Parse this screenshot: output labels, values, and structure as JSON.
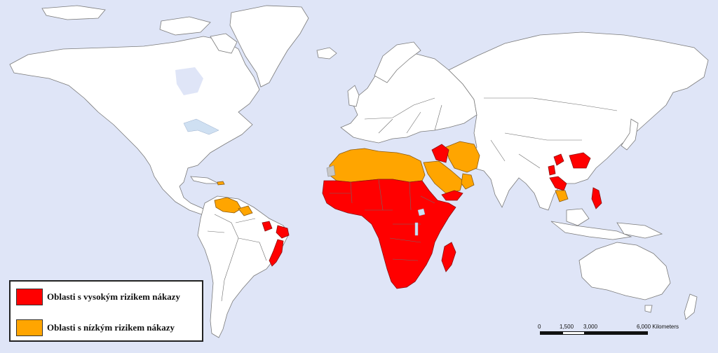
{
  "legend": {
    "items": [
      {
        "label": "Oblasti s vysokým rizikem nákazy",
        "color": "#ff0000"
      },
      {
        "label": "Oblasti s nízkým rizikem nákazy",
        "color": "#ffa500"
      }
    ]
  },
  "scalebar": {
    "ticks": [
      "0",
      "1,500",
      "3,000",
      "6,000 Kilometers"
    ]
  },
  "colors": {
    "ocean": "#dfe5f7",
    "land": "#ffffff",
    "high_risk": "#ff0000",
    "low_risk": "#ffa500"
  },
  "map": {
    "type": "world choropleth",
    "high_risk_regions": [
      "Sub-Saharan Africa",
      "Madagascar",
      "Iraq",
      "Yemen",
      "Eastern Brazil",
      "Laos",
      "Southern China",
      "Philippines"
    ],
    "low_risk_regions": [
      "North Africa",
      "Egypt",
      "Saudi Arabia",
      "Iran",
      "Oman",
      "Venezuela",
      "Cambodia",
      "Puerto Rico"
    ]
  }
}
